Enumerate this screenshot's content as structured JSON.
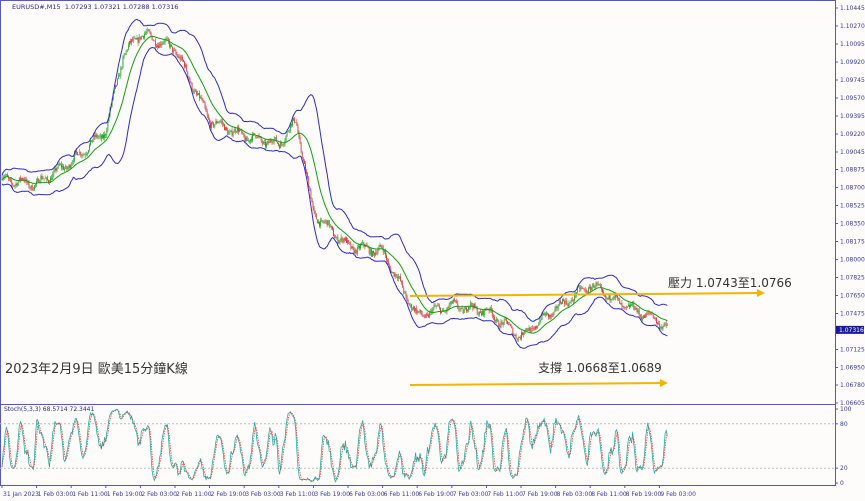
{
  "header": {
    "symbol": "EURUSD#,M15",
    "ohlc": "1.07293 1.07321 1.07288 1.07316"
  },
  "stoch_header": "Stoch(5,3,3) 68.5714 72.3441",
  "overlay_title": "2023年2月9日 歐美15分鐘K線",
  "annotations": {
    "resistance": "壓力 1.0743至1.0766",
    "support": "支撐 1.0668至1.0689"
  },
  "colors": {
    "bull": "#1fa31f",
    "bear": "#d23232",
    "band": "#2a2ad0",
    "ma": "#10a010",
    "arrow": "#f5b400",
    "stoch_main": "#20b0a0",
    "stoch_signal": "#e04040"
  },
  "chart_data": [
    {
      "type": "candlestick",
      "title": "",
      "timeframe": "M15",
      "indicators": [
        "Bollinger Bands",
        "Moving Average"
      ],
      "y_ticks": [
        "1.10445",
        "1.10270",
        "1.10095",
        "1.09920",
        "1.09745",
        "1.09570",
        "1.09395",
        "1.09220",
        "1.09045",
        "1.08875",
        "1.08700",
        "1.08525",
        "1.08350",
        "1.08175",
        "1.08000",
        "1.07825",
        "1.07650",
        "1.07475",
        "1.07125",
        "1.06950",
        "1.06780",
        "1.06605"
      ],
      "ylim": [
        1.06605,
        1.10445
      ],
      "current_price": "1.07316",
      "x_ticks": [
        "31 Jan 2023",
        "1 Feb 03:00",
        "1 Feb 11:00",
        "1 Feb 19:00",
        "2 Feb 03:00",
        "2 Feb 11:00",
        "2 Feb 19:00",
        "3 Feb 03:00",
        "3 Feb 11:00",
        "3 Feb 19:00",
        "6 Feb 03:00",
        "6 Feb 11:00",
        "6 Feb 19:00",
        "7 Feb 03:00",
        "7 Feb 11:00",
        "7 Feb 19:00",
        "8 Feb 03:00",
        "8 Feb 11:00",
        "8 Feb 19:00",
        "9 Feb 03:00"
      ],
      "approx_close": [
        {
          "t": "31 Jan 19:00",
          "p": 1.0878
        },
        {
          "t": "1 Feb 03:00",
          "p": 1.0873
        },
        {
          "t": "1 Feb 11:00",
          "p": 1.0895
        },
        {
          "t": "1 Feb 19:00",
          "p": 1.0925
        },
        {
          "t": "1 Feb 23:00",
          "p": 1.0998
        },
        {
          "t": "2 Feb 03:00",
          "p": 1.102
        },
        {
          "t": "2 Feb 11:00",
          "p": 1.1005
        },
        {
          "t": "2 Feb 19:00",
          "p": 1.0935
        },
        {
          "t": "3 Feb 03:00",
          "p": 1.092
        },
        {
          "t": "3 Feb 11:00",
          "p": 1.0912
        },
        {
          "t": "3 Feb 15:00",
          "p": 1.0935
        },
        {
          "t": "3 Feb 19:00",
          "p": 1.0845
        },
        {
          "t": "6 Feb 03:00",
          "p": 1.0813
        },
        {
          "t": "6 Feb 11:00",
          "p": 1.0808
        },
        {
          "t": "6 Feb 19:00",
          "p": 1.0745
        },
        {
          "t": "7 Feb 03:00",
          "p": 1.0755
        },
        {
          "t": "7 Feb 11:00",
          "p": 1.075
        },
        {
          "t": "7 Feb 19:00",
          "p": 1.0725
        },
        {
          "t": "8 Feb 03:00",
          "p": 1.0752
        },
        {
          "t": "8 Feb 11:00",
          "p": 1.0775
        },
        {
          "t": "8 Feb 19:00",
          "p": 1.0755
        },
        {
          "t": "9 Feb 03:00",
          "p": 1.074
        },
        {
          "t": "9 Feb 05:00",
          "p": 1.07316
        }
      ]
    },
    {
      "type": "line",
      "title": "Stoch(5,3,3)",
      "ylim": [
        0,
        100
      ],
      "y_ticks": [
        "100",
        "80",
        "20",
        "0"
      ],
      "series": [
        {
          "name": "main",
          "last": 68.5714
        },
        {
          "name": "signal",
          "last": 72.3441
        }
      ]
    }
  ]
}
